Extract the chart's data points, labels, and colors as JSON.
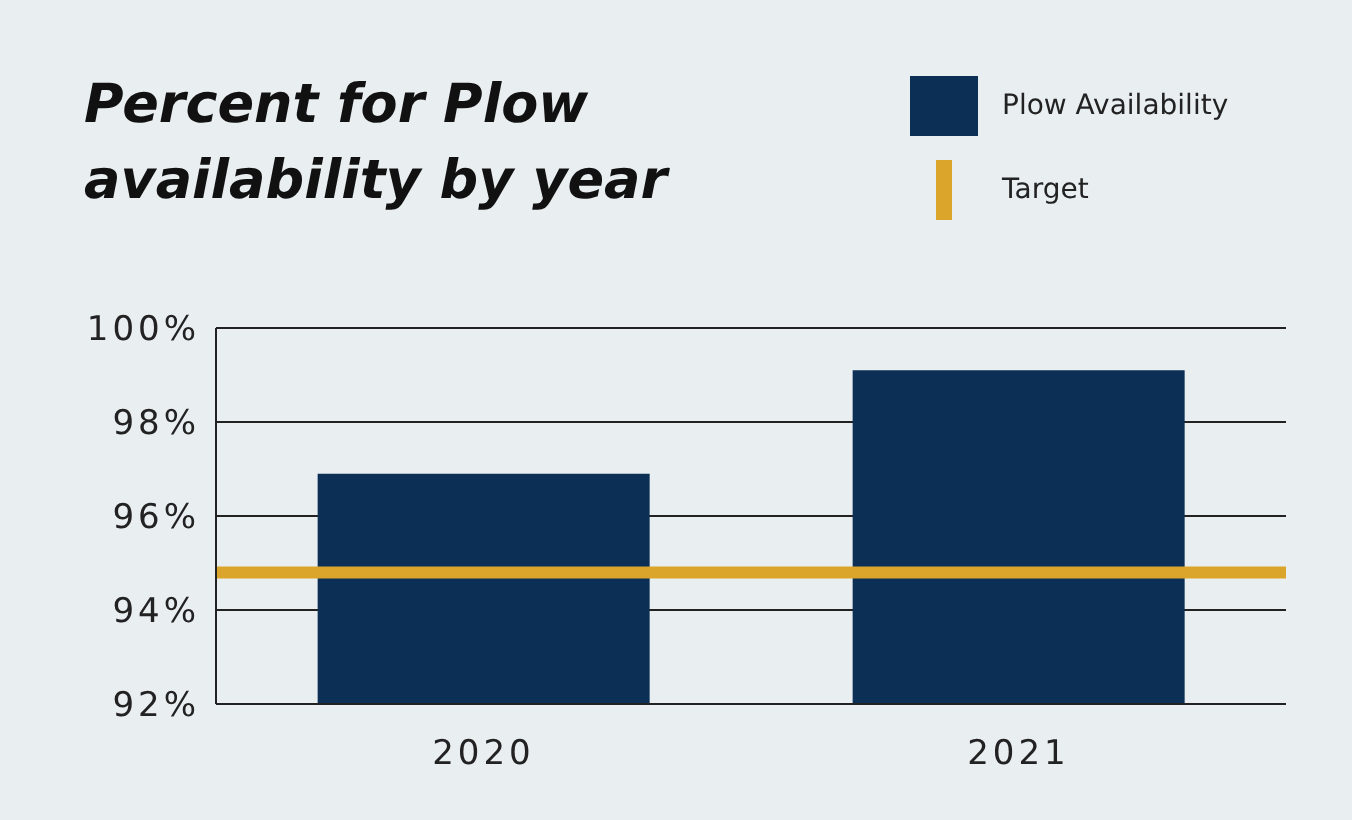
{
  "chart_data": {
    "type": "bar",
    "title": "Percent for Plow availability by year",
    "categories": [
      "2020",
      "2021"
    ],
    "series": [
      {
        "name": "Plow Availability",
        "color": "#0c2f55",
        "values": [
          96.9,
          99.1
        ]
      }
    ],
    "ylim": [
      92,
      100
    ],
    "yticks": [
      {
        "value": 92,
        "label": "92%"
      },
      {
        "value": 94,
        "label": "94%"
      },
      {
        "value": 96,
        "label": "96%"
      },
      {
        "value": 98,
        "label": "98%"
      },
      {
        "value": 100,
        "label": "100%"
      }
    ],
    "ref_lines": [
      {
        "axis": "y",
        "value": 94.8,
        "label": "Target",
        "color": "#dba52b"
      }
    ],
    "grid": "y",
    "legend": "top right"
  }
}
